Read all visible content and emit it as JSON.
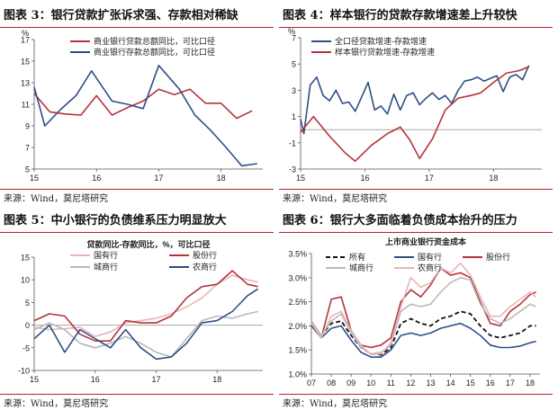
{
  "panels": [
    {
      "title": "图表 3：银行贷款扩张诉求强、存款相对稀缺",
      "source": "来源：Wind，莫尼塔研究",
      "chart_data": {
        "type": "line",
        "ylabel": "%",
        "ylim": [
          5,
          17
        ],
        "yticks": [
          5,
          7,
          9,
          11,
          13,
          15,
          17
        ],
        "xlim": [
          2015,
          2018.67
        ],
        "xticks": [
          2015,
          2016,
          2017,
          2018
        ],
        "xtick_labels": [
          "15",
          "16",
          "17",
          "18"
        ],
        "legend_pos": "top-right",
        "series": [
          {
            "name": "商业银行贷款总额同比，可比口径",
            "color": "#b5333b",
            "x": [
              2015,
              2015.25,
              2015.5,
              2015.75,
              2016,
              2016.25,
              2016.5,
              2016.75,
              2017,
              2017.25,
              2017.5,
              2017.75,
              2018,
              2018.25,
              2018.5
            ],
            "y": [
              12.0,
              10.3,
              10.1,
              10.0,
              11.8,
              10.0,
              10.7,
              11.3,
              12.4,
              11.9,
              12.4,
              11.1,
              11.1,
              9.7,
              10.4
            ]
          },
          {
            "name": "商业银行存款总额同比，可比口径",
            "color": "#2d4f86",
            "x": [
              2015,
              2015.17,
              2015.42,
              2015.67,
              2015.92,
              2016.25,
              2016.5,
              2016.75,
              2017,
              2017.33,
              2017.58,
              2017.83,
              2018.08,
              2018.33,
              2018.58
            ],
            "y": [
              12.6,
              9.0,
              10.5,
              11.8,
              14.1,
              11.3,
              11.0,
              10.6,
              14.6,
              12.4,
              10.0,
              8.6,
              7.0,
              5.3,
              5.5
            ]
          }
        ]
      }
    },
    {
      "title": "图表 4：样本银行的贷款存款增速差上升较快",
      "source": "来源：Wind，莫尼塔研究",
      "chart_data": {
        "type": "line",
        "ylabel": "%",
        "ylim": [
          -3,
          7
        ],
        "yticks": [
          -3,
          -1,
          1,
          3,
          5,
          7
        ],
        "xlim": [
          2015,
          2018.75
        ],
        "xticks": [
          2015,
          2016,
          2017,
          2018
        ],
        "xtick_labels": [
          "15",
          "16",
          "17",
          "18"
        ],
        "legend_pos": "top-left",
        "zero_line": true,
        "series": [
          {
            "name": "全口径贷款增速-存款增速",
            "color": "#2d4f86",
            "x": [
              2015,
              2015.05,
              2015.15,
              2015.25,
              2015.35,
              2015.45,
              2015.55,
              2015.65,
              2015.75,
              2015.85,
              2015.95,
              2016.05,
              2016.15,
              2016.25,
              2016.35,
              2016.45,
              2016.55,
              2016.65,
              2016.75,
              2016.85,
              2016.95,
              2017.05,
              2017.15,
              2017.25,
              2017.35,
              2017.45,
              2017.55,
              2017.65,
              2017.75,
              2017.85,
              2017.95,
              2018.05,
              2018.15,
              2018.25,
              2018.35,
              2018.45,
              2018.55
            ],
            "y": [
              0.8,
              -0.3,
              3.4,
              4.0,
              2.6,
              2.2,
              3.0,
              2.0,
              2.1,
              1.4,
              2.5,
              3.6,
              1.5,
              1.8,
              1.2,
              2.7,
              1.5,
              2.6,
              2.8,
              1.9,
              2.4,
              2.8,
              2.3,
              2.6,
              2.0,
              3.0,
              3.7,
              3.8,
              4.0,
              3.7,
              3.9,
              4.1,
              2.9,
              4.0,
              4.2,
              3.8,
              4.9
            ]
          },
          {
            "name": "样本银行贷款增速-存款增速",
            "color": "#b5333b",
            "x": [
              2015,
              2015.2,
              2015.45,
              2015.7,
              2015.85,
              2016.1,
              2016.35,
              2016.55,
              2016.7,
              2016.85,
              2017.05,
              2017.25,
              2017.45,
              2017.65,
              2017.8,
              2018.0,
              2018.2,
              2018.4,
              2018.55
            ],
            "y": [
              -0.2,
              1.0,
              -0.5,
              -1.8,
              -2.4,
              -1.2,
              -0.3,
              0.2,
              -0.8,
              -2.2,
              -0.7,
              1.5,
              2.4,
              2.6,
              2.8,
              3.6,
              4.3,
              4.5,
              4.8
            ]
          }
        ]
      }
    },
    {
      "title": "图表 5：中小银行的负债维系压力明显放大",
      "source": "来源：Wind，莫尼塔研究",
      "chart_data": {
        "type": "line",
        "title": "贷款同比-存款同比，%，可比口径",
        "ylim": [
          -10,
          15
        ],
        "yticks": [
          -10,
          -5,
          0,
          5,
          10,
          15
        ],
        "xlim": [
          2015,
          2018.75
        ],
        "xticks": [
          2015,
          2016,
          2017,
          2018
        ],
        "xtick_labels": [
          "15",
          "16",
          "17",
          "18"
        ],
        "legend_pos": "top",
        "zero_line": true,
        "series": [
          {
            "name": "国有行",
            "color": "#e8b4b8",
            "x": [
              2015,
              2015.25,
              2015.5,
              2015.75,
              2016,
              2016.25,
              2016.5,
              2016.75,
              2017,
              2017.25,
              2017.5,
              2017.75,
              2018,
              2018.25,
              2018.5,
              2018.67
            ],
            "y": [
              -0.5,
              -1.0,
              -0.8,
              -0.5,
              -2.5,
              -1.5,
              0.5,
              1.0,
              1.5,
              2.5,
              4.0,
              6.0,
              9.0,
              11.0,
              10.0,
              9.5
            ]
          },
          {
            "name": "股份行",
            "color": "#b5333b",
            "x": [
              2015,
              2015.25,
              2015.5,
              2015.75,
              2016,
              2016.25,
              2016.5,
              2016.75,
              2017,
              2017.25,
              2017.5,
              2017.75,
              2018,
              2018.25,
              2018.5,
              2018.67
            ],
            "y": [
              1.0,
              2.5,
              2.0,
              -2.0,
              -3.5,
              -3.5,
              1.0,
              0.5,
              0.5,
              2.0,
              6.0,
              8.5,
              9.0,
              12.0,
              9.0,
              8.5
            ]
          },
          {
            "name": "城商行",
            "color": "#b9b9b9",
            "x": [
              2015,
              2015.25,
              2015.5,
              2015.75,
              2016,
              2016.25,
              2016.5,
              2016.75,
              2017,
              2017.25,
              2017.5,
              2017.75,
              2018,
              2018.25,
              2018.5,
              2018.67
            ],
            "y": [
              -1.0,
              0.5,
              -1.0,
              -4.0,
              -5.0,
              -4.0,
              -2.5,
              -4.0,
              -6.0,
              -7.0,
              -3.0,
              1.0,
              2.0,
              1.5,
              2.5,
              3.0
            ]
          },
          {
            "name": "农商行",
            "color": "#2d4f86",
            "x": [
              2015,
              2015.25,
              2015.5,
              2015.75,
              2016,
              2016.25,
              2016.5,
              2016.75,
              2017,
              2017.25,
              2017.5,
              2017.75,
              2018,
              2018.25,
              2018.5,
              2018.67
            ],
            "y": [
              -3.0,
              0.0,
              -6.0,
              -1.0,
              -3.0,
              -5.0,
              -1.0,
              -5.0,
              -7.5,
              -7.0,
              -4.0,
              0.5,
              1.0,
              3.0,
              6.5,
              8.0
            ]
          }
        ]
      }
    },
    {
      "title": "图表 6：银行大多面临着负债成本抬升的压力",
      "source": "来源：Wind，莫尼塔研究",
      "chart_data": {
        "type": "line",
        "title": "上市商业银行资金成本",
        "ylim": [
          1.0,
          3.5
        ],
        "yticks": [
          1.0,
          1.5,
          2.0,
          2.5,
          3.0,
          3.5
        ],
        "ytick_labels": [
          "1.0%",
          "1.5%",
          "2.0%",
          "2.5%",
          "3.0%",
          "3.5%"
        ],
        "xlim": [
          2007,
          2018.5
        ],
        "xticks": [
          2007,
          2008,
          2009,
          2010,
          2011,
          2012,
          2013,
          2014,
          2015,
          2016,
          2017,
          2018
        ],
        "xtick_labels": [
          "07",
          "08",
          "09",
          "10",
          "11",
          "12",
          "13",
          "14",
          "15",
          "16",
          "17",
          "18"
        ],
        "legend_pos": "top",
        "series": [
          {
            "name": "所有",
            "color": "#111111",
            "dashed": true,
            "x": [
              2007,
              2007.5,
              2008,
              2008.5,
              2009,
              2009.5,
              2010,
              2010.5,
              2011,
              2011.5,
              2012,
              2012.5,
              2013,
              2013.5,
              2014,
              2014.5,
              2015,
              2015.5,
              2016,
              2016.5,
              2017,
              2017.5,
              2018,
              2018.3
            ],
            "y": [
              2.05,
              1.8,
              2.05,
              2.1,
              1.8,
              1.55,
              1.42,
              1.4,
              1.55,
              2.05,
              2.15,
              2.05,
              2.0,
              2.15,
              2.2,
              2.3,
              2.25,
              2.0,
              1.8,
              1.75,
              1.8,
              1.85,
              2.0,
              2.0
            ]
          },
          {
            "name": "国有行",
            "color": "#2d4f86",
            "x": [
              2007,
              2007.5,
              2008,
              2008.5,
              2009,
              2009.5,
              2010,
              2010.5,
              2011,
              2011.5,
              2012,
              2012.5,
              2013,
              2013.5,
              2014,
              2014.5,
              2015,
              2015.5,
              2016,
              2016.5,
              2017,
              2017.5,
              2018,
              2018.3
            ],
            "y": [
              2.0,
              1.75,
              1.95,
              2.0,
              1.7,
              1.45,
              1.35,
              1.35,
              1.5,
              1.8,
              1.85,
              1.8,
              1.85,
              1.95,
              2.0,
              2.05,
              1.95,
              1.8,
              1.6,
              1.55,
              1.55,
              1.58,
              1.65,
              1.68
            ]
          },
          {
            "name": "股份行",
            "color": "#b5333b",
            "x": [
              2007,
              2007.5,
              2008,
              2008.5,
              2009,
              2009.5,
              2010,
              2010.5,
              2011,
              2011.5,
              2012,
              2012.5,
              2013,
              2013.5,
              2014,
              2014.5,
              2015,
              2015.5,
              2016,
              2016.5,
              2017,
              2017.5,
              2018,
              2018.3
            ],
            "y": [
              2.1,
              1.75,
              2.55,
              2.6,
              1.9,
              1.6,
              1.55,
              1.6,
              1.75,
              2.5,
              2.75,
              2.6,
              2.85,
              3.2,
              3.05,
              3.1,
              3.0,
              2.5,
              2.05,
              2.0,
              2.3,
              2.45,
              2.65,
              2.7
            ]
          },
          {
            "name": "城商行",
            "color": "#b9b9b9",
            "x": [
              2007,
              2007.5,
              2008,
              2008.5,
              2009,
              2009.5,
              2010,
              2010.5,
              2011,
              2011.5,
              2012,
              2012.5,
              2013,
              2013.5,
              2014,
              2014.5,
              2015,
              2015.5,
              2016,
              2016.5,
              2017,
              2017.5,
              2018,
              2018.3
            ],
            "y": [
              2.1,
              1.8,
              2.1,
              2.25,
              1.85,
              1.55,
              1.42,
              1.45,
              1.6,
              2.3,
              2.45,
              2.4,
              2.45,
              2.7,
              2.9,
              3.0,
              2.95,
              2.45,
              2.15,
              2.05,
              2.15,
              2.3,
              2.45,
              2.4
            ]
          },
          {
            "name": "农商行",
            "color": "#e8b4b8",
            "x": [
              2007,
              2007.5,
              2008,
              2008.5,
              2009,
              2009.5,
              2010,
              2010.5,
              2011,
              2011.5,
              2012,
              2012.5,
              2013,
              2013.5,
              2014,
              2014.5,
              2015,
              2015.5,
              2016,
              2016.5,
              2017,
              2017.5,
              2018,
              2018.3
            ],
            "y": [
              2.05,
              1.75,
              2.2,
              2.3,
              1.9,
              1.6,
              1.4,
              1.42,
              1.65,
              2.4,
              3.0,
              2.8,
              2.9,
              3.2,
              3.1,
              3.3,
              3.05,
              2.6,
              2.2,
              2.2,
              2.4,
              2.55,
              2.7,
              2.6
            ]
          }
        ]
      }
    }
  ]
}
